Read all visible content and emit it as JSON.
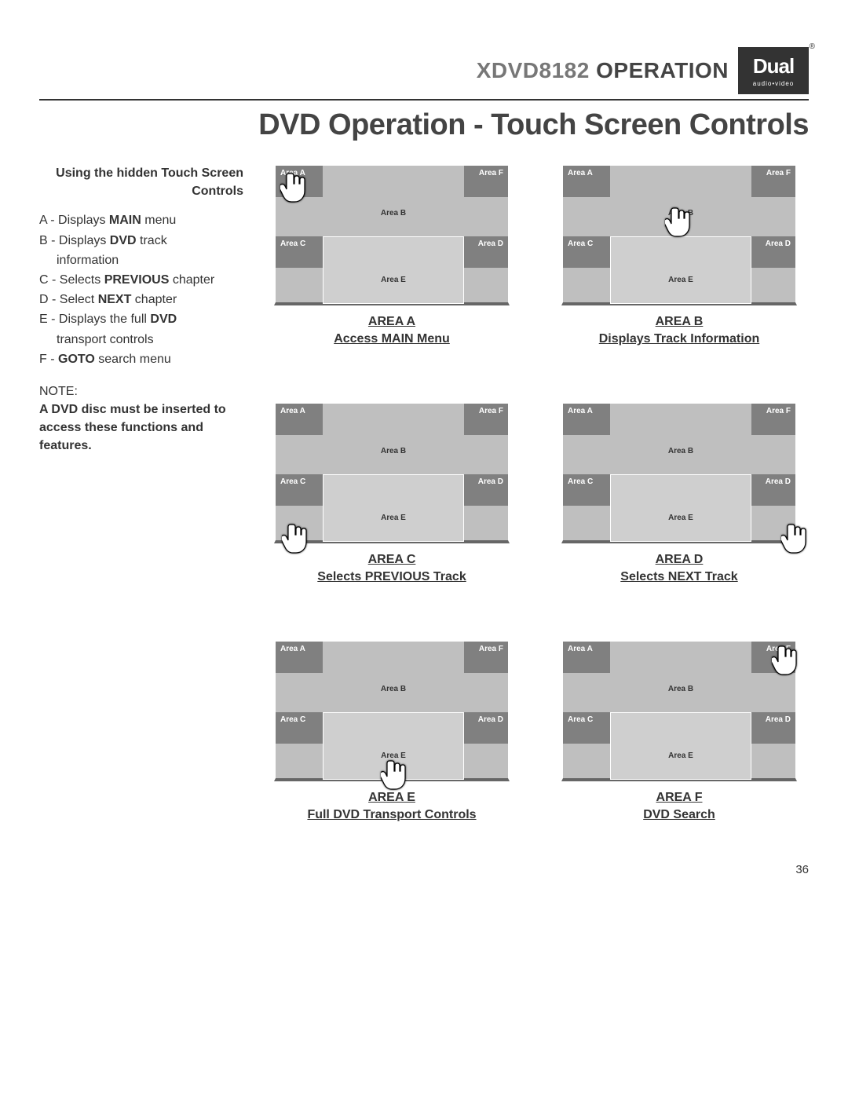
{
  "header": {
    "model": "XDVD8182",
    "operation": "OPERATION",
    "brand": "Dual",
    "brand_sub": "audio•video",
    "reg": "®"
  },
  "page_title": "DVD Operation - Touch Screen Controls",
  "sidebar": {
    "heading": "Using the hidden Touch Screen Controls",
    "items": {
      "a_pre": "A - Displays ",
      "a_bold": "MAIN",
      "a_post": " menu",
      "b_pre": "B - Displays ",
      "b_bold": "DVD",
      "b_post": " track",
      "b_line2": "information",
      "c_pre": "C - Selects ",
      "c_bold": "PREVIOUS",
      "c_post": " chapter",
      "d_pre": "D - Select ",
      "d_bold": "NEXT",
      "d_post": " chapter",
      "e_pre": "E - Displays the full ",
      "e_bold": "DVD",
      "e_line2": "transport controls",
      "f_pre": "F - ",
      "f_bold": "GOTO",
      "f_post": " search menu"
    },
    "note_label": "NOTE:",
    "note_body": "A DVD disc must be inserted to access these functions and features."
  },
  "zone_labels": {
    "A": "Area A",
    "B": "Area B",
    "C": "Area C",
    "D": "Area D",
    "E": "Area E",
    "F": "Area F"
  },
  "panels": [
    {
      "caption1": "AREA A",
      "caption2": "Access MAIN Menu",
      "hand_zone": "A"
    },
    {
      "caption1": "AREA B",
      "caption2": "Displays Track Information",
      "hand_zone": "B"
    },
    {
      "caption1": "AREA C",
      "caption2": "Selects PREVIOUS Track",
      "hand_zone": "C_below"
    },
    {
      "caption1": "AREA D",
      "caption2": "Selects NEXT Track",
      "hand_zone": "D_below"
    },
    {
      "caption1": "AREA E",
      "caption2": "Full DVD Transport Controls",
      "hand_zone": "E_below"
    },
    {
      "caption1": "AREA F",
      "caption2": "DVD Search",
      "hand_zone": "F"
    }
  ],
  "colors": {
    "zone_dark": "#808080",
    "zone_mid": "#bfbfbf",
    "zone_light": "#cfcfcf",
    "frame_border": "#ffffff",
    "bottom_edge": "#666666"
  },
  "page_number": "36"
}
